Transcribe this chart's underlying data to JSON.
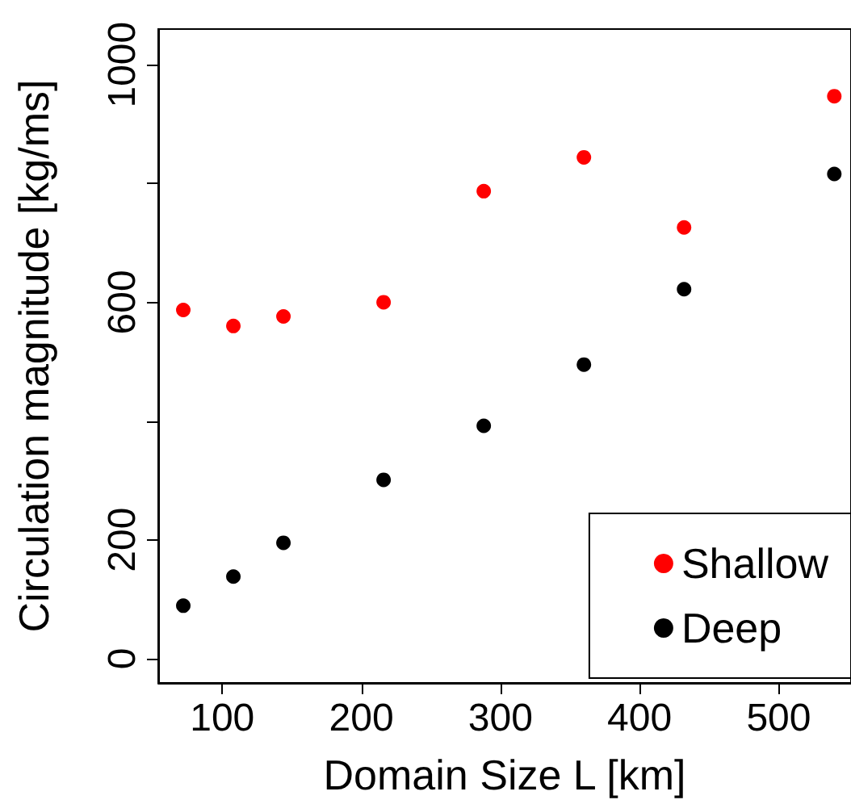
{
  "chart_data": {
    "type": "scatter",
    "xlabel": "Domain Size L [km]",
    "ylabel": "Circulation magnitude [kg/ms]",
    "x": [
      72,
      108,
      144,
      216,
      288,
      360,
      432,
      540
    ],
    "series": [
      {
        "name": "Shallow",
        "color": "#ff0000",
        "values": [
          587,
          560,
          576,
          600,
          787,
          844,
          726,
          947
        ]
      },
      {
        "name": "Deep",
        "color": "#000000",
        "values": [
          89,
          138,
          195,
          301,
          392,
          495,
          622,
          816
        ]
      }
    ],
    "xlim": [
      54,
      552
    ],
    "ylim": [
      -41,
      1060
    ],
    "xticks": [
      100,
      200,
      300,
      400,
      500
    ],
    "yticks": [
      0,
      200,
      {
        "value": 400,
        "label": null
      },
      600,
      {
        "value": 800,
        "label": null
      },
      1000
    ],
    "grid": false,
    "legend": "bottom right",
    "marker": "circle"
  }
}
